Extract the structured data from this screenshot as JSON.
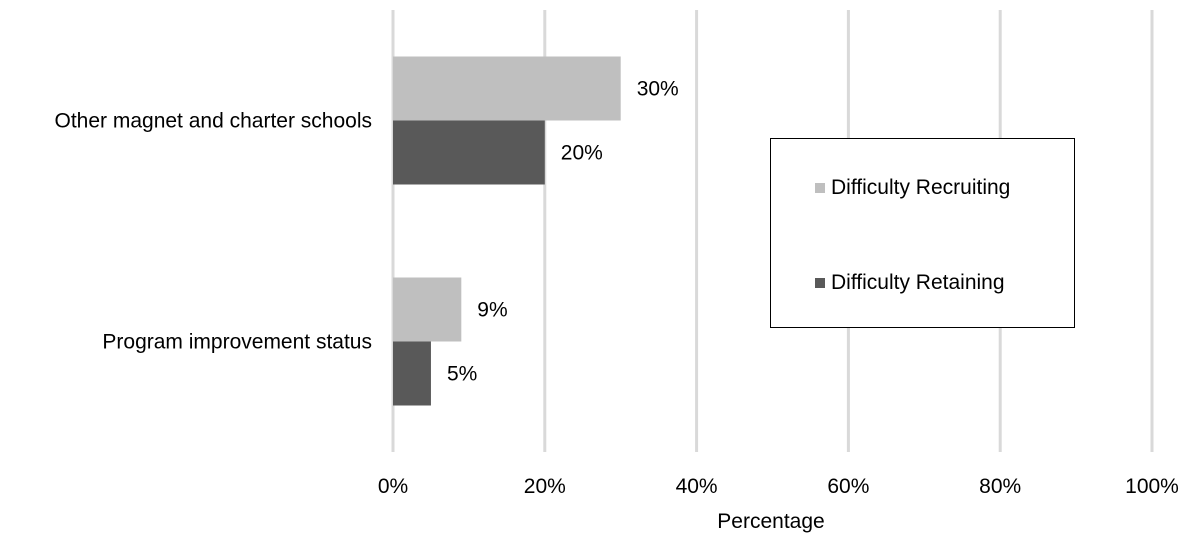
{
  "chart_data": {
    "type": "bar",
    "orientation": "horizontal",
    "categories": [
      "Other magnet and charter schools",
      "Program improvement status"
    ],
    "series": [
      {
        "name": "Difficulty Recruiting",
        "values": [
          30,
          9
        ],
        "labels": [
          "30%",
          "9%"
        ],
        "color": "#bfbfbf"
      },
      {
        "name": "Difficulty Retaining",
        "values": [
          20,
          5
        ],
        "labels": [
          "20%",
          "5%"
        ],
        "color": "#595959"
      }
    ],
    "xlabel": "Percentage",
    "xlim": [
      0,
      100
    ],
    "xticks": [
      0,
      20,
      40,
      60,
      80,
      100
    ],
    "xtick_labels": [
      "0%",
      "20%",
      "40%",
      "60%",
      "80%",
      "100%"
    ],
    "grid": "vertical",
    "legend_position": "right"
  }
}
